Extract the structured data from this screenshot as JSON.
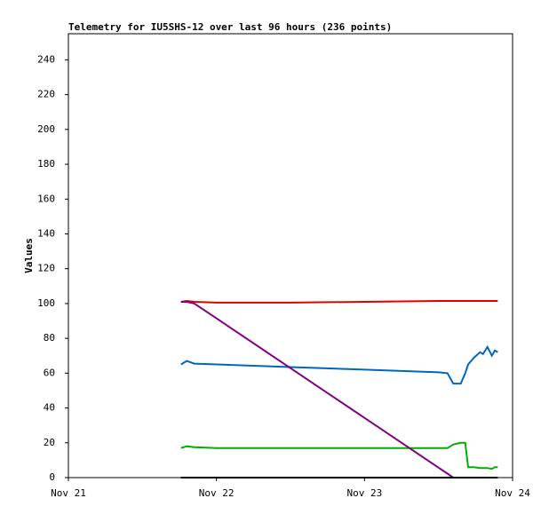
{
  "chart_data": {
    "type": "line",
    "title": "Telemetry for IU5SHS-12 over last 96 hours (236 points)",
    "y_label": "Values",
    "x": [
      21.76,
      21.8,
      21.85,
      22.0,
      22.5,
      23.0,
      23.5,
      23.56,
      23.6,
      23.65,
      23.68,
      23.7,
      23.74,
      23.78,
      23.8,
      23.83,
      23.86,
      23.88,
      23.9
    ],
    "series": [
      {
        "color": "#e00000",
        "values": [
          101,
          101.5,
          101,
          100.5,
          100.5,
          101,
          101.5,
          101.5,
          101.5,
          101.5,
          101.5,
          101.5,
          101.5,
          101.5,
          101.5,
          101.5,
          101.5,
          101.5,
          101.5
        ]
      },
      {
        "color": "#0066c0",
        "values": [
          65,
          67,
          65.5,
          65,
          63.5,
          62,
          60.5,
          60,
          54,
          54,
          60,
          65,
          69,
          72,
          71,
          75,
          70,
          73,
          72
        ]
      },
      {
        "color": "#00b000",
        "values": [
          17,
          18,
          17.5,
          17,
          17,
          17,
          17,
          17,
          19,
          20,
          20,
          6,
          6,
          5.5,
          5.5,
          5.5,
          5,
          6,
          6
        ]
      },
      {
        "color": "#800080",
        "values": [
          101,
          101,
          100,
          91.5,
          62.9,
          34.3,
          5.7,
          2.3,
          0,
          null,
          null,
          null,
          null,
          null,
          null,
          null,
          null,
          null,
          null
        ]
      },
      {
        "color": "#000000",
        "values": [
          0,
          0,
          0,
          0,
          0,
          0,
          0,
          0,
          0,
          0,
          0,
          0,
          0,
          0,
          0,
          0,
          0,
          0,
          0
        ]
      }
    ],
    "xlim": [
      21,
      24
    ],
    "xticks": [
      {
        "value": 21,
        "label": "Nov 21"
      },
      {
        "value": 22,
        "label": "Nov 22"
      },
      {
        "value": 23,
        "label": "Nov 23"
      },
      {
        "value": 24,
        "label": "Nov 24"
      }
    ],
    "ylim": [
      0,
      255
    ],
    "yticks": [
      0,
      20,
      40,
      60,
      80,
      100,
      120,
      140,
      160,
      180,
      200,
      220,
      240
    ],
    "grid": false
  }
}
